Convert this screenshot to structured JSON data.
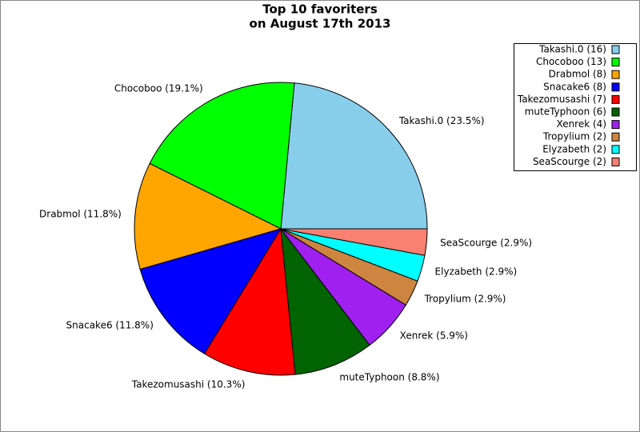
{
  "chart_data": {
    "type": "pie",
    "title": [
      "Top 10 favoriters",
      "on August 17th 2013"
    ],
    "categories": [
      "Takashi.0 (16)",
      "Chocoboo (13)",
      "Drabmol (8)",
      "Snacake6 (8)",
      "Takezomusashi (7)",
      "muteTyphoon (6)",
      "Xenrek (4)",
      "Tropylium (2)",
      "Elyzabeth (2)",
      "SeaScourge (2)"
    ],
    "values": [
      23.5,
      19.1,
      11.8,
      11.8,
      10.3,
      8.8,
      5.9,
      2.9,
      2.9,
      2.9
    ],
    "value_labels": [
      "Takashi.0 (23.5%)",
      "Chocoboo (19.1%)",
      "Drabmol (11.8%)",
      "Snacake6 (11.8%)",
      "Takezomusashi (10.3%)",
      "muteTyphoon (8.8%)",
      "Xenrek (5.9%)",
      "Tropylium (2.9%)",
      "Elyzabeth (2.9%)",
      "SeaScourge (2.9%)"
    ],
    "colors": [
      "#87ceeb",
      "#00ff00",
      "#ffa500",
      "#0000ff",
      "#ff0000",
      "#006400",
      "#a020f0",
      "#cd853f",
      "#00ffff",
      "#fa8072"
    ],
    "legend": "top-right"
  }
}
